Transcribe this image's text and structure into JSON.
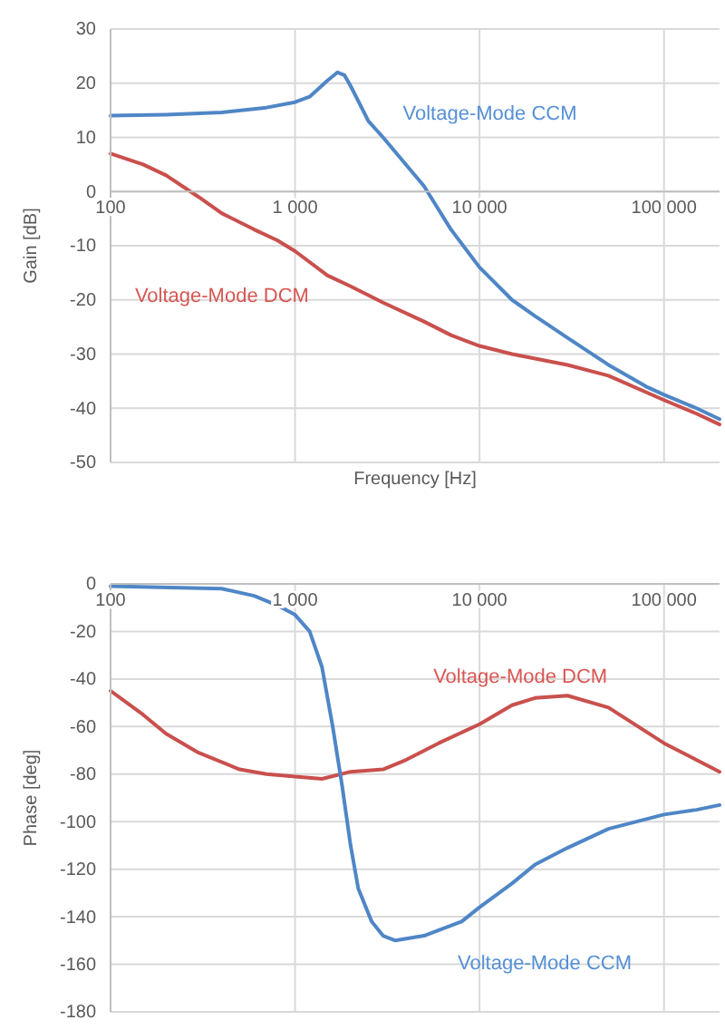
{
  "chart_data": [
    {
      "type": "line",
      "xlabel": "Frequency [Hz]",
      "ylabel": "Gain [dB]",
      "log": "x",
      "grid": true,
      "legend": false,
      "xlim": [
        100,
        200000
      ],
      "ylim": [
        -50,
        30
      ],
      "xticks": [
        100,
        {
          "value": 1000,
          "label": "1 000"
        },
        {
          "value": 10000,
          "label": "10 000"
        },
        {
          "value": 100000,
          "label": "100 000"
        }
      ],
      "yticks": [
        -50,
        -40,
        -30,
        -20,
        -10,
        0,
        10,
        20,
        30
      ],
      "series": [
        {
          "name": "Voltage-Mode CCM",
          "color": "#4f86c6",
          "x": [
            100,
            200,
            400,
            700,
            1000,
            1200,
            1500,
            1700,
            1850,
            2000,
            2500,
            3000,
            5000,
            7000,
            10000,
            15000,
            20000,
            30000,
            50000,
            80000,
            100000,
            150000,
            200000
          ],
          "values": [
            14,
            14.2,
            14.6,
            15.5,
            16.5,
            17.5,
            20.5,
            22,
            21.5,
            19.5,
            13,
            10,
            1,
            -7,
            -14,
            -20,
            -23,
            -27,
            -32,
            -36,
            -37.5,
            -40,
            -42
          ]
        },
        {
          "name": "Voltage-Mode DCM",
          "color": "#c9504d",
          "x": [
            100,
            150,
            200,
            300,
            400,
            600,
            800,
            1000,
            1500,
            2000,
            3000,
            5000,
            7000,
            10000,
            15000,
            30000,
            50000,
            100000,
            150000,
            200000
          ],
          "values": [
            7,
            5,
            3,
            -1,
            -4,
            -7,
            -9,
            -11,
            -15.5,
            -17.5,
            -20.5,
            -24,
            -26.5,
            -28.5,
            -30,
            -32,
            -34,
            -38.5,
            -41,
            -43
          ]
        }
      ]
    },
    {
      "type": "line",
      "ylabel": "Phase [deg]",
      "log": "x",
      "grid": true,
      "legend": false,
      "xlim": [
        100,
        200000
      ],
      "ylim": [
        -180,
        0
      ],
      "xticks": [
        100,
        {
          "value": 1000,
          "label": "1 000"
        },
        {
          "value": 10000,
          "label": "10 000"
        },
        {
          "value": 100000,
          "label": "100 000"
        }
      ],
      "yticks": [
        -180,
        -160,
        -140,
        -120,
        -100,
        -80,
        -60,
        -40,
        -20,
        0
      ],
      "series": [
        {
          "name": "Voltage-Mode DCM",
          "color": "#c9504d",
          "x": [
            100,
            150,
            200,
            300,
            500,
            700,
            1000,
            1400,
            2000,
            3000,
            4000,
            6000,
            10000,
            15000,
            20000,
            30000,
            50000,
            100000,
            200000
          ],
          "values": [
            -45,
            -55,
            -63,
            -71,
            -78,
            -80,
            -81,
            -82,
            -79,
            -78,
            -74,
            -67,
            -59,
            -51,
            -48,
            -47,
            -52,
            -67,
            -79
          ]
        },
        {
          "name": "Voltage-Mode CCM",
          "color": "#4f86c6",
          "x": [
            100,
            400,
            600,
            800,
            1000,
            1200,
            1400,
            1600,
            1800,
            2000,
            2200,
            2600,
            3000,
            3500,
            5000,
            8000,
            10000,
            15000,
            20000,
            30000,
            50000,
            100000,
            150000,
            200000
          ],
          "values": [
            -1,
            -2,
            -5,
            -9,
            -13,
            -20,
            -35,
            -60,
            -85,
            -110,
            -128,
            -142,
            -148,
            -150,
            -148,
            -142,
            -136,
            -126,
            -118,
            -111,
            -103,
            -97,
            -95,
            -93
          ]
        }
      ]
    }
  ]
}
